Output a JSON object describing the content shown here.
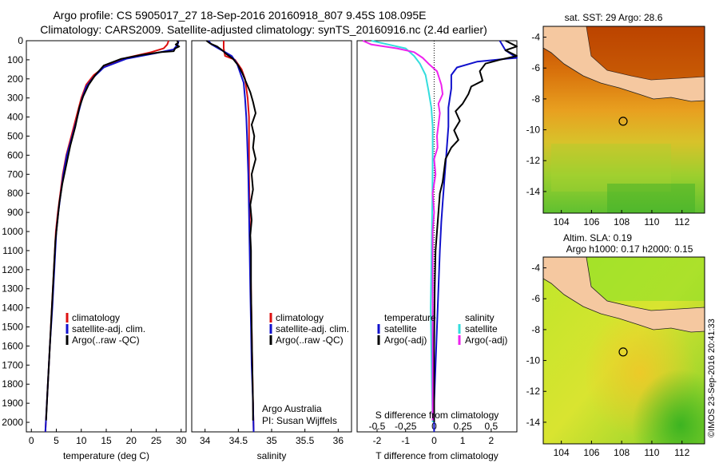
{
  "header": {
    "title_line1": "Argo profile: CS 5905017_27 18-Sep-2016 20160918_807 9.45S 108.095E",
    "title_line2": "Climatology: CARS2009. Satellite-adjusted climatology: synTS_20160916.nc (2.4d earlier)"
  },
  "colors": {
    "climatology": "#dd1111",
    "satellite": "#1111cc",
    "argo": "#000000",
    "sat_salinity": "#33dddd",
    "argo_salinity_adj": "#ee22ee",
    "land": "#f5c8a0"
  },
  "chart_data": [
    {
      "id": "temperature",
      "type": "line",
      "xlabel": "temperature (deg C)",
      "ylabel": "",
      "xlim": [
        -1,
        31
      ],
      "ylim": [
        2050,
        0
      ],
      "xticks": [
        0,
        5,
        10,
        15,
        20,
        25,
        30
      ],
      "yticks": [
        0,
        100,
        200,
        300,
        400,
        500,
        600,
        700,
        800,
        900,
        1000,
        1100,
        1200,
        1300,
        1400,
        1500,
        1600,
        1700,
        1800,
        1900,
        2000
      ],
      "legend": [
        "climatology",
        "satellite-adj. clim.",
        "Argo(..raw -QC)"
      ],
      "series": [
        {
          "name": "climatology",
          "color": "#dd1111",
          "points": [
            [
              27.5,
              0
            ],
            [
              27.2,
              20
            ],
            [
              26.5,
              40
            ],
            [
              24,
              60
            ],
            [
              19,
              90
            ],
            [
              15,
              130
            ],
            [
              12.5,
              180
            ],
            [
              11,
              230
            ],
            [
              10,
              300
            ],
            [
              9,
              400
            ],
            [
              8,
              500
            ],
            [
              7,
              600
            ],
            [
              6.3,
              700
            ],
            [
              5.8,
              800
            ],
            [
              5.3,
              900
            ],
            [
              4.9,
              1000
            ],
            [
              4.5,
              1200
            ],
            [
              4.1,
              1400
            ],
            [
              3.7,
              1600
            ],
            [
              3.3,
              1800
            ],
            [
              2.9,
              2000
            ],
            [
              2.8,
              2050
            ]
          ]
        },
        {
          "name": "satellite-adj. clim.",
          "color": "#1111cc",
          "points": [
            [
              29.5,
              0
            ],
            [
              29.3,
              20
            ],
            [
              28.5,
              45
            ],
            [
              25,
              65
            ],
            [
              19,
              95
            ],
            [
              14.5,
              140
            ],
            [
              12.5,
              190
            ],
            [
              11,
              240
            ],
            [
              10.2,
              300
            ],
            [
              9.2,
              400
            ],
            [
              8.2,
              500
            ],
            [
              7.1,
              600
            ],
            [
              6.4,
              700
            ],
            [
              5.9,
              800
            ],
            [
              5.4,
              900
            ],
            [
              5,
              1000
            ],
            [
              4.6,
              1200
            ],
            [
              4.2,
              1400
            ],
            [
              3.7,
              1600
            ],
            [
              3.3,
              1800
            ],
            [
              2.9,
              2000
            ],
            [
              2.8,
              2050
            ]
          ]
        },
        {
          "name": "Argo(..raw -QC)",
          "color": "#000000",
          "points": [
            [
              29.2,
              0
            ],
            [
              29.4,
              10
            ],
            [
              28.9,
              20
            ],
            [
              29.6,
              30
            ],
            [
              28.8,
              40
            ],
            [
              28.5,
              55
            ],
            [
              26,
              60
            ],
            [
              22,
              75
            ],
            [
              18,
              95
            ],
            [
              14.5,
              130
            ],
            [
              12.8,
              180
            ],
            [
              11.5,
              230
            ],
            [
              10.4,
              290
            ],
            [
              9.6,
              350
            ],
            [
              8.8,
              450
            ],
            [
              7.8,
              550
            ],
            [
              7,
              650
            ],
            [
              6.2,
              750
            ],
            [
              5.6,
              850
            ],
            [
              5.2,
              950
            ],
            [
              4.8,
              1050
            ],
            [
              4.4,
              1250
            ],
            [
              4,
              1450
            ],
            [
              3.6,
              1650
            ],
            [
              3.2,
              1850
            ],
            [
              2.95,
              1990
            ]
          ]
        }
      ]
    },
    {
      "id": "salinity",
      "type": "line",
      "xlabel": "salinity",
      "ylabel": "",
      "xlim": [
        33.8,
        36.2
      ],
      "ylim": [
        2050,
        0
      ],
      "xticks": [
        34,
        34.5,
        35,
        35.5,
        36
      ],
      "legend": [
        "climatology",
        "satellite-adj. clim.",
        "Argo(..raw -QC)"
      ],
      "annotation_lines": [
        "Argo Australia",
        "PI: Susan Wijffels"
      ],
      "series": [
        {
          "name": "climatology",
          "color": "#dd1111",
          "points": [
            [
              34.28,
              0
            ],
            [
              34.28,
              40
            ],
            [
              34.3,
              80
            ],
            [
              34.45,
              100
            ],
            [
              34.55,
              150
            ],
            [
              34.6,
              200
            ],
            [
              34.64,
              300
            ],
            [
              34.66,
              400
            ],
            [
              34.66,
              500
            ],
            [
              34.66,
              700
            ],
            [
              34.67,
              900
            ],
            [
              34.68,
              1100
            ],
            [
              34.69,
              1300
            ],
            [
              34.7,
              1500
            ],
            [
              34.71,
              1700
            ],
            [
              34.72,
              1900
            ],
            [
              34.73,
              2050
            ]
          ]
        },
        {
          "name": "satellite-adj. clim.",
          "color": "#1111cc",
          "points": [
            [
              34.05,
              0
            ],
            [
              34.1,
              20
            ],
            [
              34.2,
              40
            ],
            [
              34.3,
              60
            ],
            [
              34.4,
              80
            ],
            [
              34.48,
              120
            ],
            [
              34.53,
              170
            ],
            [
              34.58,
              220
            ],
            [
              34.6,
              300
            ],
            [
              34.62,
              400
            ],
            [
              34.63,
              500
            ],
            [
              34.65,
              700
            ],
            [
              34.66,
              900
            ],
            [
              34.67,
              1100
            ],
            [
              34.68,
              1300
            ],
            [
              34.69,
              1500
            ],
            [
              34.7,
              1700
            ],
            [
              34.72,
              1900
            ],
            [
              34.73,
              2050
            ]
          ]
        },
        {
          "name": "Argo(..raw -QC)",
          "color": "#000000",
          "points": [
            [
              34.02,
              0
            ],
            [
              34.08,
              15
            ],
            [
              34.18,
              30
            ],
            [
              34.26,
              50
            ],
            [
              34.32,
              70
            ],
            [
              34.42,
              95
            ],
            [
              34.5,
              130
            ],
            [
              34.56,
              170
            ],
            [
              34.62,
              220
            ],
            [
              34.68,
              270
            ],
            [
              34.72,
              320
            ],
            [
              34.76,
              380
            ],
            [
              34.7,
              440
            ],
            [
              34.74,
              500
            ],
            [
              34.72,
              560
            ],
            [
              34.76,
              620
            ],
            [
              34.7,
              700
            ],
            [
              34.72,
              780
            ],
            [
              34.68,
              860
            ],
            [
              34.7,
              940
            ],
            [
              34.68,
              1020
            ],
            [
              34.69,
              1100
            ],
            [
              34.69,
              1300
            ],
            [
              34.7,
              1500
            ],
            [
              34.71,
              1700
            ],
            [
              34.72,
              1900
            ],
            [
              34.72,
              1990
            ]
          ]
        }
      ]
    },
    {
      "id": "difference",
      "type": "line",
      "xlabel": "T difference from climatology",
      "x2label": "S difference from climatology",
      "xlim": [
        -2.7,
        2.9
      ],
      "ylim": [
        2050,
        0
      ],
      "xticks": [
        -2,
        -1,
        0,
        1,
        2
      ],
      "x2ticks": [
        -0.5,
        -0.25,
        0,
        0.25,
        0.5
      ],
      "x2scale": 4,
      "legend_left_title": "temperature",
      "legend_left": [
        "satellite",
        "Argo(-adj)"
      ],
      "legend_right_title": "salinity",
      "legend_right": [
        "satellite",
        "Argo(-adj)"
      ],
      "series": [
        {
          "name": "temperature satellite",
          "color": "#1111cc",
          "points": [
            [
              2.3,
              0
            ],
            [
              2.5,
              50
            ],
            [
              2.9,
              90
            ],
            [
              2.5,
              95
            ],
            [
              1.5,
              110
            ],
            [
              0.8,
              140
            ],
            [
              0.6,
              180
            ],
            [
              0.6,
              250
            ],
            [
              0.5,
              350
            ],
            [
              0.5,
              450
            ],
            [
              0.45,
              550
            ],
            [
              0.4,
              650
            ],
            [
              0.35,
              750
            ],
            [
              0.3,
              850
            ],
            [
              0.25,
              950
            ],
            [
              0.2,
              1100
            ],
            [
              0.15,
              1300
            ],
            [
              0.1,
              1500
            ],
            [
              0.05,
              1700
            ],
            [
              0,
              1900
            ],
            [
              0,
              2050
            ]
          ]
        },
        {
          "name": "temperature Argo(-adj)",
          "color": "#000000",
          "points": [
            [
              2.5,
              0
            ],
            [
              2.9,
              30
            ],
            [
              2.5,
              50
            ],
            [
              2.9,
              80
            ],
            [
              2.3,
              100
            ],
            [
              1.8,
              120
            ],
            [
              1.6,
              160
            ],
            [
              1.7,
              210
            ],
            [
              1.3,
              240
            ],
            [
              1.2,
              280
            ],
            [
              1.0,
              330
            ],
            [
              0.75,
              370
            ],
            [
              0.9,
              420
            ],
            [
              0.7,
              470
            ],
            [
              0.85,
              520
            ],
            [
              0.6,
              560
            ],
            [
              0.4,
              620
            ],
            [
              0.35,
              680
            ],
            [
              0.3,
              740
            ],
            [
              0.2,
              800
            ],
            [
              0.15,
              900
            ],
            [
              0.1,
              1000
            ],
            [
              0.05,
              1100
            ],
            [
              0.02,
              1300
            ],
            [
              0,
              1600
            ],
            [
              0,
              2000
            ]
          ]
        },
        {
          "name": "salinity satellite",
          "color": "#33dddd",
          "points": [
            [
              -2.2,
              0
            ],
            [
              -1.6,
              20
            ],
            [
              -1.0,
              40
            ],
            [
              -0.7,
              80
            ],
            [
              -0.5,
              120
            ],
            [
              -0.3,
              180
            ],
            [
              -0.2,
              260
            ],
            [
              -0.1,
              350
            ],
            [
              -0.05,
              450
            ],
            [
              -0.05,
              600
            ],
            [
              -0.06,
              800
            ],
            [
              -0.08,
              1000
            ],
            [
              -0.1,
              1200
            ],
            [
              -0.12,
              1400
            ],
            [
              -0.1,
              1600
            ],
            [
              -0.08,
              1800
            ],
            [
              -0.05,
              2000
            ]
          ]
        },
        {
          "name": "salinity Argo(-adj)",
          "color": "#ee22ee",
          "points": [
            [
              -2.5,
              0
            ],
            [
              -2.2,
              20
            ],
            [
              -1.3,
              40
            ],
            [
              -0.7,
              60
            ],
            [
              -0.4,
              90
            ],
            [
              -0.2,
              120
            ],
            [
              0.1,
              160
            ],
            [
              0.25,
              230
            ],
            [
              0.3,
              280
            ],
            [
              0.15,
              330
            ],
            [
              0.2,
              380
            ],
            [
              0.15,
              440
            ],
            [
              0.1,
              500
            ],
            [
              0.12,
              560
            ],
            [
              0.0,
              620
            ],
            [
              0.05,
              700
            ],
            [
              -0.05,
              800
            ],
            [
              0.0,
              900
            ],
            [
              -0.05,
              1000
            ],
            [
              -0.05,
              1200
            ],
            [
              -0.05,
              1400
            ],
            [
              -0.05,
              1600
            ],
            [
              -0.05,
              1800
            ],
            [
              -0.05,
              1990
            ]
          ]
        }
      ]
    }
  ],
  "maps": [
    {
      "id": "sst-map",
      "title": "sat. SST: 29 Argo: 28.6",
      "xticks": [
        104,
        106,
        108,
        110,
        112
      ],
      "yticks": [
        -4,
        -6,
        -8,
        -10,
        -12,
        -14
      ],
      "xlim": [
        102.8,
        113.5
      ],
      "ylim": [
        -15.4,
        -3.3
      ],
      "marker": [
        108.095,
        -9.45
      ]
    },
    {
      "id": "sla-map",
      "title_line1": "Altim. SLA: 0.19",
      "title_line2": "Argo h1000: 0.17 h2000: 0.15",
      "xticks": [
        104,
        106,
        108,
        110,
        112
      ],
      "yticks": [
        -4,
        -6,
        -8,
        -10,
        -12,
        -14
      ],
      "xlim": [
        102.8,
        113.5
      ],
      "ylim": [
        -15.4,
        -3.3
      ],
      "marker": [
        108.095,
        -9.45
      ]
    }
  ],
  "footer": {
    "credit": "©IMOS 23-Sep-2016 20:41:33"
  }
}
